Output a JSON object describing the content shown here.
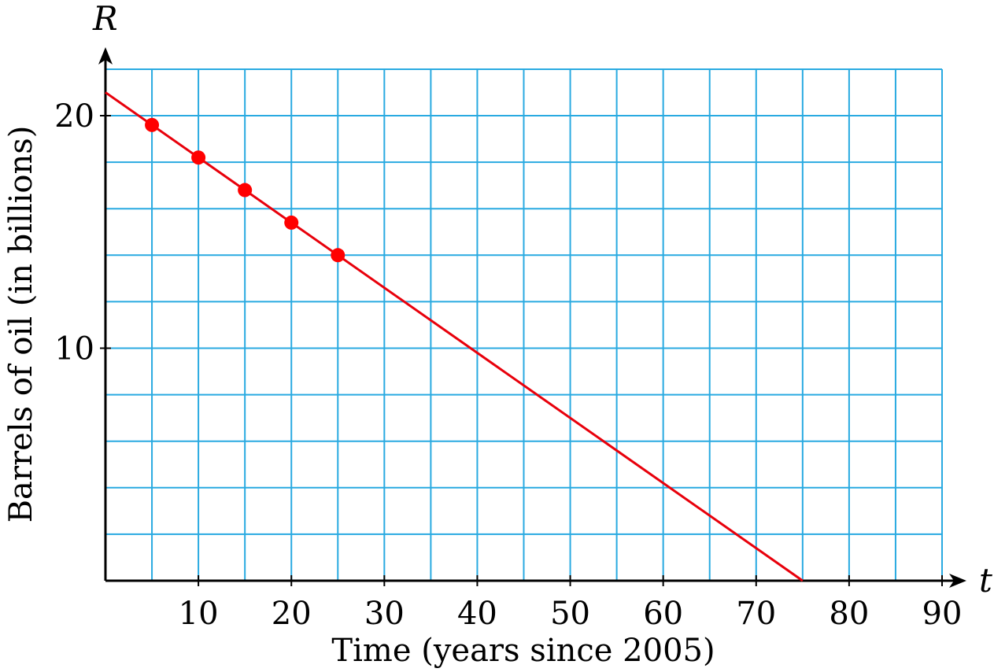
{
  "chart_data": {
    "type": "line",
    "xlabel": "Time (years since 2005)",
    "ylabel": "Barrels of oil (in billions)",
    "x_var": "t",
    "y_var": "R",
    "xlim": [
      0,
      90
    ],
    "ylim": [
      0,
      20
    ],
    "x_ticks": [
      10,
      20,
      30,
      40,
      50,
      60,
      70,
      80,
      90
    ],
    "y_ticks": [
      10,
      20
    ],
    "x_grid_step": 5,
    "y_grid_step": 2,
    "grid": true,
    "line": {
      "x": [
        0,
        75
      ],
      "y": [
        21,
        0
      ]
    },
    "points": {
      "x": [
        5,
        10,
        15,
        20,
        25
      ],
      "y": [
        19.6,
        18.2,
        16.8,
        15.4,
        14.0
      ]
    },
    "colors": {
      "grid": "#29aae1",
      "line": "#e8000b",
      "points": "#ff0000",
      "axis": "#000000"
    }
  }
}
